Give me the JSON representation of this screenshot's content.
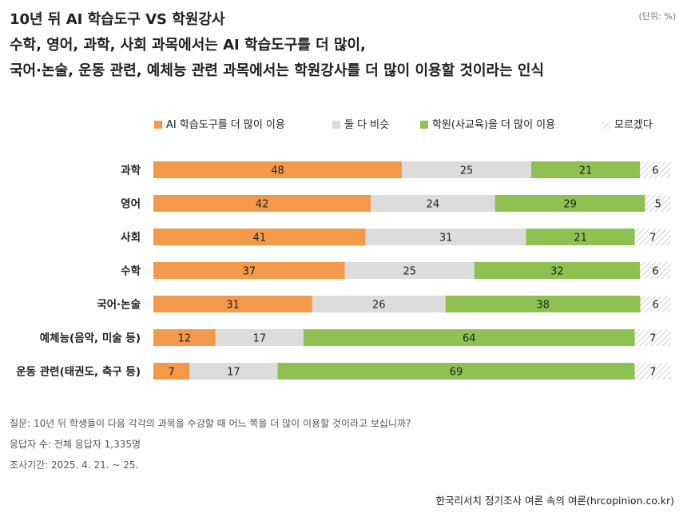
{
  "title": {
    "line1": "10년 뒤 AI 학습도구 VS 학원강사",
    "line2": "수학, 영어, 과학, 사회 과목에서는 AI 학습도구를 더 많이,",
    "line3": "국어·논술, 운동 관련, 예체능 관련 과목에서는 학원강사를 더 많이 이용할 것이라는 인식"
  },
  "unit": "(단위: %)",
  "footer": {
    "question": "질문: 10년 뒤 학생들이 다음 각각의 과목을 수강할 때 어느 쪽을 더 많이 이용할 것이라고 보십니까?",
    "respondents": "응답자 수: 전체 응답자 1,335명",
    "period": "조사기간: 2025. 4. 21. ~ 25.",
    "source": "한국리서치 정기조사 여론 속의 여론(hrcopinion.co.kr)"
  },
  "chart_data": {
    "type": "bar",
    "orientation": "horizontal",
    "stacked": true,
    "categories": [
      "과학",
      "영어",
      "사회",
      "수학",
      "국어·논술",
      "예체능(음악, 미술 등)",
      "운동 관련(태권도, 축구 등)"
    ],
    "series": [
      {
        "name": "AI 학습도구를 더 많이 이용",
        "color": "#f39a4a",
        "values": [
          48,
          42,
          41,
          37,
          31,
          12,
          7
        ]
      },
      {
        "name": "둘 다 비슷",
        "color": "#dcdcdc",
        "values": [
          25,
          24,
          31,
          25,
          26,
          17,
          17
        ]
      },
      {
        "name": "학원(사교육)을 더 많이 이용",
        "color": "#8dc151",
        "values": [
          21,
          29,
          21,
          32,
          38,
          64,
          69
        ]
      },
      {
        "name": "모르겠다",
        "color": "hatch",
        "values": [
          6,
          5,
          7,
          6,
          6,
          7,
          7
        ]
      }
    ],
    "legend_position": "top",
    "grid": false
  }
}
